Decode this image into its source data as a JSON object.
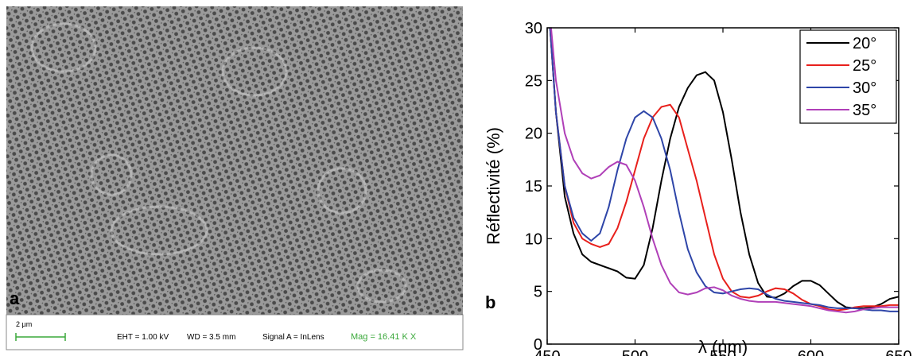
{
  "sem_image": {
    "panel_label": "a",
    "scale_bar": "2 µm",
    "eht": "EHT = 1.00 kV",
    "wd": "WD = 3.5 mm",
    "signal": "Signal A = InLens",
    "mag": "Mag = 16.41 K X"
  },
  "chart_data": {
    "type": "line",
    "panel_label": "b",
    "x_label": "λ (nm)",
    "y_label": "Réflectivité (%)",
    "x": [
      450,
      455,
      460,
      465,
      470,
      475,
      480,
      485,
      490,
      495,
      500,
      505,
      510,
      515,
      520,
      525,
      530,
      535,
      540,
      545,
      550,
      555,
      560,
      565,
      570,
      575,
      580,
      585,
      590,
      595,
      600,
      605,
      610,
      615,
      620,
      625,
      630,
      635,
      640,
      645,
      650
    ],
    "series": [
      {
        "name": "20°",
        "color": "#000000",
        "values": [
          34,
          22,
          14,
          10.5,
          8.5,
          7.8,
          7.5,
          7.2,
          6.9,
          6.3,
          6.2,
          7.5,
          11,
          15.5,
          19.5,
          22.5,
          24.3,
          25.5,
          25.8,
          25,
          22,
          17.5,
          12.5,
          8.5,
          5.8,
          4.5,
          4.4,
          4.8,
          5.5,
          6.0,
          6.0,
          5.6,
          4.8,
          4.0,
          3.5,
          3.4,
          3.4,
          3.5,
          3.8,
          4.3,
          4.5
        ]
      },
      {
        "name": "25°",
        "color": "#e8201c",
        "values": [
          34,
          22,
          15,
          11.5,
          10,
          9.5,
          9.2,
          9.5,
          11,
          13.5,
          16.5,
          19.5,
          21.5,
          22.5,
          22.7,
          21.5,
          18.5,
          15.5,
          12,
          8.5,
          6.2,
          5,
          4.5,
          4.4,
          4.6,
          5,
          5.3,
          5.2,
          4.8,
          4.2,
          3.8,
          3.6,
          3.3,
          3.2,
          3.3,
          3.5,
          3.6,
          3.6,
          3.6,
          3.7,
          3.7
        ]
      },
      {
        "name": "30°",
        "color": "#2e45a8",
        "values": [
          34,
          22,
          15,
          12,
          10.5,
          9.8,
          10.5,
          13,
          16.5,
          19.5,
          21.5,
          22.1,
          21.5,
          19.5,
          16.5,
          12.5,
          9,
          6.8,
          5.5,
          4.9,
          4.8,
          5,
          5.2,
          5.3,
          5.2,
          4.7,
          4.3,
          4.1,
          4.0,
          3.9,
          3.8,
          3.7,
          3.5,
          3.4,
          3.4,
          3.4,
          3.3,
          3.2,
          3.2,
          3.1,
          3.1
        ]
      },
      {
        "name": "35°",
        "color": "#b040b8",
        "values": [
          34,
          25,
          20,
          17.5,
          16.2,
          15.7,
          16,
          16.8,
          17.3,
          17,
          15.5,
          13,
          10,
          7.5,
          5.8,
          4.9,
          4.7,
          4.9,
          5.3,
          5.4,
          5.1,
          4.6,
          4.3,
          4.1,
          4.0,
          4.0,
          4.0,
          3.9,
          3.8,
          3.7,
          3.6,
          3.4,
          3.2,
          3.1,
          3.0,
          3.1,
          3.3,
          3.4,
          3.5,
          3.5,
          3.5
        ]
      }
    ],
    "xlim": [
      450,
      650
    ],
    "ylim": [
      0,
      30
    ],
    "xticks": [
      450,
      500,
      550,
      600,
      650
    ],
    "yticks": [
      0,
      5,
      10,
      15,
      20,
      25,
      30
    ],
    "legend": "upper right"
  }
}
